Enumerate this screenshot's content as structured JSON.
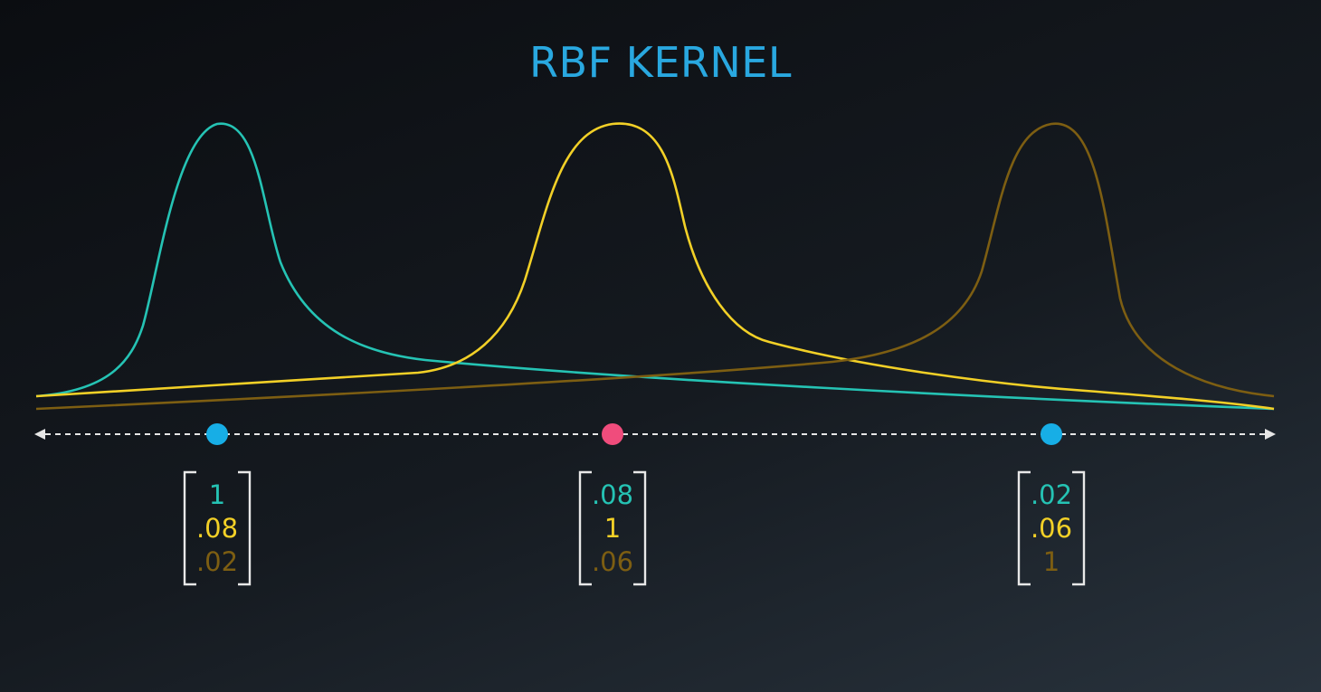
{
  "title": "RBF KERNEL",
  "colors": {
    "teal": "#25c3b4",
    "yellow": "#f2d027",
    "olive": "#7d5e12",
    "blue_point": "#17aee6",
    "pink_point": "#f04c7c",
    "axis": "#e6e6e6",
    "bracket": "#e8e8e8",
    "title": "#29a8e0"
  },
  "points": [
    {
      "id": "p1",
      "color": "blue_point"
    },
    {
      "id": "p2",
      "color": "pink_point"
    },
    {
      "id": "p3",
      "color": "blue_point"
    }
  ],
  "vectors": [
    {
      "values": [
        {
          "text": "1",
          "color": "teal"
        },
        {
          "text": ".08",
          "color": "yellow"
        },
        {
          "text": ".02",
          "color": "olive"
        }
      ]
    },
    {
      "values": [
        {
          "text": ".08",
          "color": "teal"
        },
        {
          "text": "1",
          "color": "yellow"
        },
        {
          "text": ".06",
          "color": "olive"
        }
      ]
    },
    {
      "values": [
        {
          "text": ".02",
          "color": "teal"
        },
        {
          "text": ".06",
          "color": "yellow"
        },
        {
          "text": "1",
          "color": "olive"
        }
      ]
    }
  ]
}
